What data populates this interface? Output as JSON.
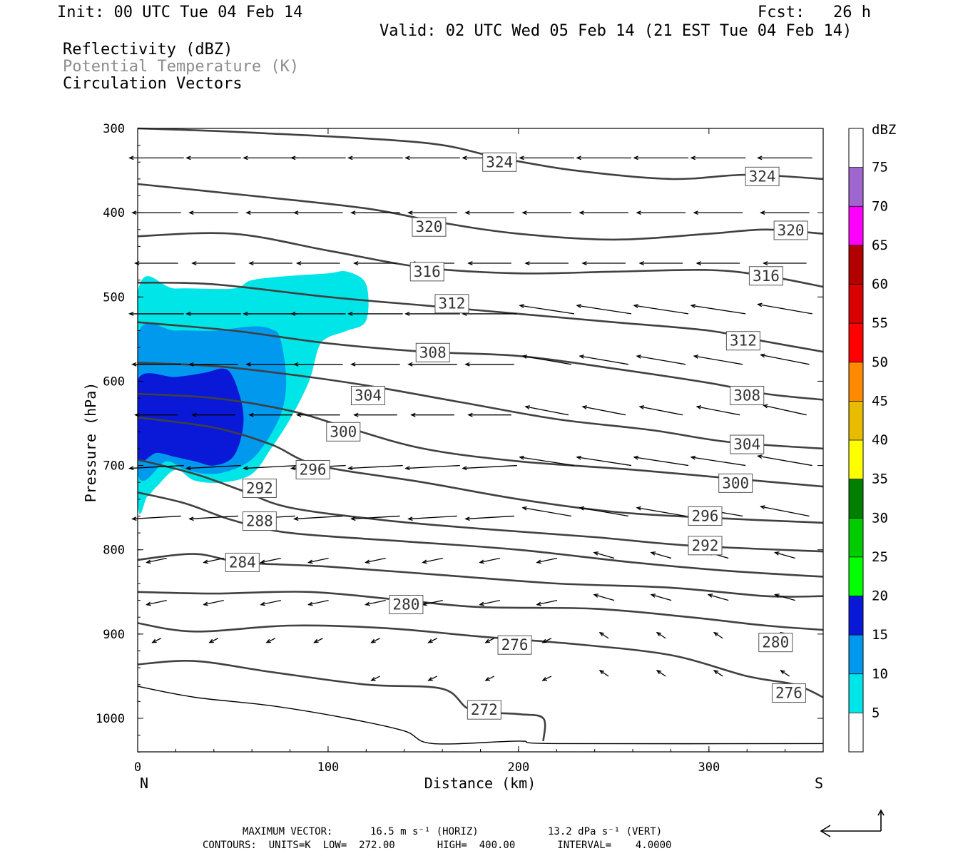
{
  "header": {
    "init": "Init: 00 UTC Tue 04 Feb 14",
    "fcst_label": "Fcst:",
    "fcst_value": "26 h",
    "valid": "Valid: 02 UTC Wed 05 Feb 14 (21 EST Tue 04 Feb 14)",
    "fields": [
      "Reflectivity (dBZ)",
      "Potential Temperature (K)",
      "Circulation Vectors"
    ]
  },
  "colors": {
    "field_gray": "#8c8c8c",
    "contour": "#404040",
    "refl_light": "#00e5e8",
    "refl_mid": "#0099ee",
    "refl_dark": "#0a18d8"
  },
  "chart_data": {
    "type": "contour",
    "xlabel": "Distance (km)",
    "ylabel": "Pressure (hPa)",
    "xlim": [
      0,
      360
    ],
    "ylim": [
      1040,
      300
    ],
    "x_ticks": [
      "0",
      "100",
      "200",
      "300"
    ],
    "y_ticks": [
      "300",
      "400",
      "500",
      "600",
      "700",
      "800",
      "900",
      "1000"
    ],
    "x_end_labels": {
      "left": "N",
      "right": "S"
    },
    "theta_contours": [
      {
        "label": "324",
        "points": [
          [
            0,
            300
          ],
          [
            60,
            305
          ],
          [
            150,
            317
          ],
          [
            190,
            335
          ],
          [
            230,
            350
          ],
          [
            280,
            360
          ],
          [
            320,
            355
          ],
          [
            360,
            360
          ]
        ],
        "label_at": [
          190,
          340
        ],
        "label2_at": [
          328,
          357
        ]
      },
      {
        "label": "320",
        "points": [
          [
            0,
            366
          ],
          [
            60,
            380
          ],
          [
            120,
            395
          ],
          [
            160,
            412
          ],
          [
            200,
            425
          ],
          [
            250,
            432
          ],
          [
            300,
            425
          ],
          [
            330,
            420
          ],
          [
            360,
            425
          ]
        ],
        "label_at": [
          153,
          417
        ],
        "label2_at": [
          343,
          421
        ]
      },
      {
        "label": "316",
        "points": [
          [
            0,
            428
          ],
          [
            50,
            425
          ],
          [
            100,
            445
          ],
          [
            150,
            465
          ],
          [
            200,
            472
          ],
          [
            250,
            470
          ],
          [
            300,
            468
          ],
          [
            330,
            475
          ],
          [
            360,
            488
          ]
        ],
        "label_at": [
          152,
          470
        ],
        "label2_at": [
          330,
          475
        ]
      },
      {
        "label": "312",
        "points": [
          [
            0,
            483
          ],
          [
            40,
            485
          ],
          [
            100,
            500
          ],
          [
            150,
            510
          ],
          [
            200,
            520
          ],
          [
            250,
            530
          ],
          [
            300,
            540
          ],
          [
            330,
            553
          ],
          [
            360,
            565
          ]
        ],
        "label_at": [
          165,
          508
        ],
        "label2_at": [
          318,
          552
        ]
      },
      {
        "label": "308",
        "points": [
          [
            0,
            530
          ],
          [
            50,
            540
          ],
          [
            100,
            555
          ],
          [
            150,
            565
          ],
          [
            200,
            570
          ],
          [
            250,
            585
          ],
          [
            300,
            602
          ],
          [
            330,
            615
          ],
          [
            360,
            622
          ]
        ],
        "label_at": [
          155,
          566
        ],
        "label2_at": [
          320,
          617
        ]
      },
      {
        "label": "304",
        "points": [
          [
            0,
            578
          ],
          [
            40,
            582
          ],
          [
            80,
            592
          ],
          [
            120,
            605
          ],
          [
            170,
            625
          ],
          [
            220,
            645
          ],
          [
            270,
            658
          ],
          [
            310,
            672
          ],
          [
            360,
            680
          ]
        ],
        "label_at": [
          121,
          617
        ],
        "label2_at": [
          320,
          675
        ]
      },
      {
        "label": "300",
        "points": [
          [
            0,
            615
          ],
          [
            40,
            620
          ],
          [
            80,
            635
          ],
          [
            110,
            655
          ],
          [
            150,
            680
          ],
          [
            200,
            695
          ],
          [
            260,
            705
          ],
          [
            310,
            715
          ],
          [
            360,
            725
          ]
        ],
        "label_at": [
          108,
          660
        ],
        "label2_at": [
          314,
          721
        ]
      },
      {
        "label": "296",
        "points": [
          [
            0,
            643
          ],
          [
            40,
            655
          ],
          [
            70,
            675
          ],
          [
            95,
            700
          ],
          [
            150,
            720
          ],
          [
            200,
            740
          ],
          [
            250,
            755
          ],
          [
            300,
            762
          ],
          [
            360,
            768
          ]
        ],
        "label_at": [
          92,
          705
        ],
        "label2_at": [
          298,
          760
        ]
      },
      {
        "label": "292",
        "points": [
          [
            0,
            693
          ],
          [
            30,
            710
          ],
          [
            55,
            730
          ],
          [
            80,
            750
          ],
          [
            130,
            765
          ],
          [
            180,
            775
          ],
          [
            240,
            785
          ],
          [
            290,
            795
          ],
          [
            360,
            802
          ]
        ],
        "label_at": [
          64,
          727
        ],
        "label2_at": [
          298,
          795
        ]
      },
      {
        "label": "288",
        "points": [
          [
            0,
            732
          ],
          [
            25,
            745
          ],
          [
            50,
            765
          ],
          [
            80,
            780
          ],
          [
            140,
            790
          ],
          [
            200,
            800
          ],
          [
            260,
            815
          ],
          [
            310,
            825
          ],
          [
            360,
            832
          ]
        ],
        "label_at": [
          64,
          766
        ],
        "label2_at": null
      },
      {
        "label": "284",
        "points": [
          [
            0,
            812
          ],
          [
            30,
            805
          ],
          [
            55,
            815
          ],
          [
            100,
            820
          ],
          [
            160,
            830
          ],
          [
            220,
            840
          ],
          [
            280,
            845
          ],
          [
            330,
            855
          ],
          [
            360,
            855
          ]
        ],
        "label_at": [
          55,
          815
        ],
        "label2_at": null
      },
      {
        "label": "280",
        "points": [
          [
            0,
            850
          ],
          [
            40,
            852
          ],
          [
            90,
            850
          ],
          [
            140,
            860
          ],
          [
            180,
            868
          ],
          [
            240,
            870
          ],
          [
            290,
            880
          ],
          [
            330,
            890
          ],
          [
            360,
            895
          ]
        ],
        "label_at": [
          141,
          865
        ],
        "label2_at": [
          335,
          910
        ]
      },
      {
        "label": "276",
        "points": [
          [
            0,
            887
          ],
          [
            30,
            897
          ],
          [
            80,
            890
          ],
          [
            130,
            893
          ],
          [
            180,
            903
          ],
          [
            230,
            912
          ],
          [
            280,
            925
          ],
          [
            320,
            950
          ],
          [
            345,
            960
          ],
          [
            360,
            975
          ]
        ],
        "label_at": [
          198,
          913
        ],
        "label2_at": [
          342,
          970
        ]
      },
      {
        "label": "272",
        "points": [
          [
            0,
            936
          ],
          [
            30,
            932
          ],
          [
            70,
            945
          ],
          [
            120,
            960
          ],
          [
            160,
            965
          ],
          [
            175,
            990
          ],
          [
            200,
            995
          ],
          [
            213,
            1000
          ],
          [
            213,
            1027
          ]
        ],
        "label_at": [
          182,
          990
        ],
        "label2_at": null
      }
    ],
    "surface_contour": {
      "points": [
        [
          0,
          962
        ],
        [
          30,
          975
        ],
        [
          70,
          985
        ],
        [
          110,
          1000
        ],
        [
          140,
          1015
        ],
        [
          155,
          1030
        ],
        [
          200,
          1027
        ],
        [
          220,
          1030
        ],
        [
          360,
          1030
        ]
      ]
    },
    "reflectivity_shading": [
      {
        "min_dbz": 5,
        "color": "#00e5e8",
        "points": [
          [
            0,
            495
          ],
          [
            20,
            490
          ],
          [
            50,
            490
          ],
          [
            60,
            480
          ],
          [
            80,
            475
          ],
          [
            100,
            472
          ],
          [
            110,
            470
          ],
          [
            120,
            485
          ],
          [
            120,
            528
          ],
          [
            110,
            540
          ],
          [
            100,
            548
          ],
          [
            95,
            560
          ],
          [
            90,
            600
          ],
          [
            80,
            645
          ],
          [
            70,
            680
          ],
          [
            60,
            710
          ],
          [
            45,
            720
          ],
          [
            30,
            718
          ],
          [
            20,
            705
          ],
          [
            10,
            725
          ],
          [
            5,
            737
          ],
          [
            0,
            740
          ]
        ]
      },
      {
        "min_dbz": 10,
        "color": "#0099ee",
        "points": [
          [
            0,
            545
          ],
          [
            20,
            540
          ],
          [
            40,
            540
          ],
          [
            60,
            535
          ],
          [
            70,
            538
          ],
          [
            75,
            550
          ],
          [
            78,
            600
          ],
          [
            75,
            640
          ],
          [
            65,
            680
          ],
          [
            55,
            700
          ],
          [
            40,
            710
          ],
          [
            25,
            705
          ],
          [
            15,
            695
          ],
          [
            0,
            710
          ]
        ]
      },
      {
        "min_dbz": 15,
        "color": "#0a18d8",
        "points": [
          [
            0,
            598
          ],
          [
            20,
            595
          ],
          [
            35,
            590
          ],
          [
            45,
            585
          ],
          [
            50,
            595
          ],
          [
            55,
            630
          ],
          [
            55,
            660
          ],
          [
            50,
            690
          ],
          [
            40,
            700
          ],
          [
            30,
            695
          ],
          [
            20,
            690
          ],
          [
            10,
            685
          ],
          [
            0,
            690
          ]
        ]
      }
    ],
    "vectors": {
      "style": "arrow pointing left/toward N aloft",
      "max_horiz": "16.5 m s⁻¹ (HORIZ)",
      "max_vert": "13.2 dPa s⁻¹ (VERT)"
    },
    "colorbar": {
      "title": "dBZ",
      "levels": [
        "5",
        "10",
        "15",
        "20",
        "25",
        "30",
        "35",
        "40",
        "45",
        "50",
        "55",
        "60",
        "65",
        "70",
        "75"
      ],
      "colors": [
        "#ffffff",
        "#00e5e8",
        "#0099ee",
        "#0a18d8",
        "#00ff00",
        "#00cc00",
        "#007f00",
        "#ffff00",
        "#e8bc00",
        "#ff8a00",
        "#ff0000",
        "#d90000",
        "#b20000",
        "#ff00ff",
        "#a066d0",
        "#ffffff"
      ]
    }
  },
  "footer": {
    "max_vector_label": "MAXIMUM VECTOR:",
    "max_horiz": "16.5 m s⁻¹ (HORIZ)",
    "max_vert": "13.2 dPa s⁻¹ (VERT)",
    "contours": "CONTOURS:  UNITS=K  LOW=  272.00       HIGH=  400.00       INTERVAL=    4.0000"
  }
}
